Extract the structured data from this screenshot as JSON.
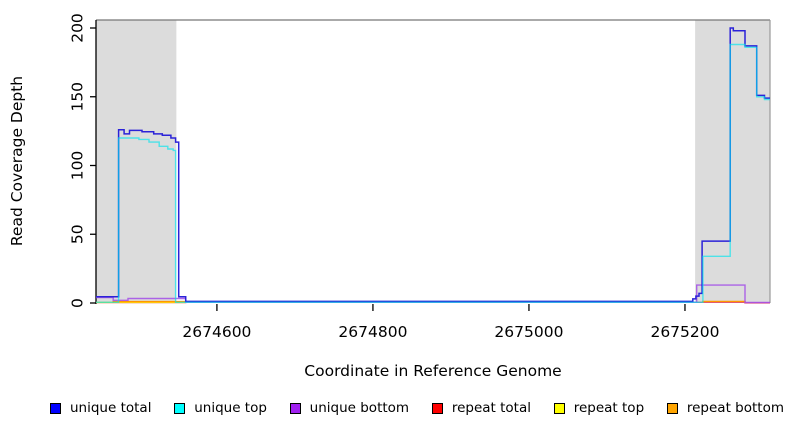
{
  "figure": {
    "xlabel": "Coordinate in Reference Genome",
    "ylabel": "Read Coverage Depth"
  },
  "legend": {
    "items": [
      {
        "label": "unique total",
        "color": "#0000FF"
      },
      {
        "label": "unique top",
        "color": "#00FFFF"
      },
      {
        "label": "unique bottom",
        "color": "#A020F0"
      },
      {
        "label": "repeat total",
        "color": "#FF0000"
      },
      {
        "label": "repeat top",
        "color": "#FFFF00"
      },
      {
        "label": "repeat bottom",
        "color": "#FFA500"
      }
    ]
  },
  "chart_data": {
    "type": "line",
    "title": "",
    "xlabel": "Coordinate in Reference Genome",
    "ylabel": "Read Coverage Depth",
    "xlim": [
      2674445,
      2675309
    ],
    "ylim": [
      0,
      206
    ],
    "xticks": [
      2674600,
      2674800,
      2675000,
      2675200
    ],
    "yticks": [
      0,
      50,
      100,
      150,
      200
    ],
    "grid": false,
    "legend_position": "bottom",
    "background_color": "#FFFFFF",
    "shaded_region_color": "#DCDCDC",
    "shaded_regions": [
      {
        "x0": 2674445,
        "x1": 2674548
      },
      {
        "x0": 2675213,
        "x1": 2675309
      }
    ],
    "series": [
      {
        "name": "repeat total",
        "color": "#DC3A6E",
        "opacity": 0.85,
        "width": 1.4,
        "segments": [
          [
            [
              2674445,
              0.3
            ],
            [
              2674560,
              0.3
            ],
            [
              2674560,
              0.5
            ],
            [
              2675277,
              0.5
            ],
            [
              2675277,
              0.1
            ],
            [
              2675309,
              0.1
            ]
          ]
        ]
      },
      {
        "name": "repeat top",
        "color": "#FFE800",
        "opacity": 0.9,
        "width": 1.4,
        "segments": [
          [
            [
              2674445,
              0.45
            ],
            [
              2674560,
              0.45
            ]
          ]
        ]
      },
      {
        "name": "repeat bottom",
        "color": "#FF9800",
        "opacity": 1,
        "width": 1.4,
        "segments": [
          [
            [
              2674467,
              0.2
            ],
            [
              2674467,
              1.0
            ],
            [
              2674559,
              1.0
            ],
            [
              2674559,
              0.2
            ]
          ],
          [
            [
              2675223,
              0.2
            ],
            [
              2675223,
              1.2
            ],
            [
              2675277,
              1.2
            ],
            [
              2675277,
              0.2
            ]
          ]
        ]
      },
      {
        "name": "unique bottom",
        "color": "#A24DE8",
        "opacity": 0.85,
        "width": 1.4,
        "segments": [
          [
            [
              2674445,
              4
            ],
            [
              2674467,
              4
            ],
            [
              2674467,
              2
            ],
            [
              2674486,
              2
            ],
            [
              2674486,
              3.3
            ],
            [
              2674560,
              3.3
            ],
            [
              2674560,
              0.5
            ],
            [
              2675215,
              0.5
            ],
            [
              2675215,
              13
            ],
            [
              2675277,
              13
            ],
            [
              2675277,
              0.4
            ],
            [
              2675309,
              0.4
            ]
          ]
        ]
      },
      {
        "name": "unique total",
        "color": "#2B22D8",
        "opacity": 1,
        "width": 1.5,
        "segments": [
          [
            [
              2674445,
              4.5
            ],
            [
              2674474,
              4.5
            ],
            [
              2674474,
              126
            ],
            [
              2674481,
              126
            ],
            [
              2674481,
              123
            ],
            [
              2674488,
              123
            ],
            [
              2674488,
              125.5
            ],
            [
              2674504,
              125.5
            ],
            [
              2674504,
              124.5
            ],
            [
              2674519,
              124.5
            ],
            [
              2674519,
              123
            ],
            [
              2674530,
              123
            ],
            [
              2674530,
              122
            ],
            [
              2674541,
              122
            ],
            [
              2674541,
              120
            ],
            [
              2674547,
              120
            ],
            [
              2674547,
              117
            ],
            [
              2674551,
              117
            ],
            [
              2674551,
              4.5
            ],
            [
              2674560,
              4.5
            ],
            [
              2674560,
              1.2
            ],
            [
              2675210,
              1.2
            ],
            [
              2675210,
              3
            ],
            [
              2675214,
              3
            ],
            [
              2675214,
              5
            ],
            [
              2675218,
              5
            ],
            [
              2675218,
              7
            ],
            [
              2675222,
              7
            ],
            [
              2675222,
              45
            ],
            [
              2675258,
              45
            ],
            [
              2675258,
              200
            ],
            [
              2675262,
              200
            ],
            [
              2675262,
              198
            ],
            [
              2675277,
              198
            ],
            [
              2675277,
              187
            ],
            [
              2675292,
              187
            ],
            [
              2675292,
              151
            ],
            [
              2675302,
              151
            ],
            [
              2675302,
              149
            ],
            [
              2675309,
              149
            ]
          ]
        ]
      },
      {
        "name": "unique top",
        "color": "#00E5EE",
        "opacity": 0.65,
        "width": 1.4,
        "segments": [
          [
            [
              2674445,
              0.5
            ],
            [
              2674474,
              0.5
            ],
            [
              2674474,
              120
            ],
            [
              2674500,
              120
            ],
            [
              2674500,
              119
            ],
            [
              2674513,
              119
            ],
            [
              2674513,
              117
            ],
            [
              2674526,
              117
            ],
            [
              2674526,
              114
            ],
            [
              2674537,
              114
            ],
            [
              2674537,
              112
            ],
            [
              2674544,
              112
            ],
            [
              2674544,
              111
            ],
            [
              2674547,
              111
            ],
            [
              2674547,
              0.5
            ],
            [
              2675223,
              0.5
            ],
            [
              2675223,
              34
            ],
            [
              2675258,
              34
            ],
            [
              2675258,
              188
            ],
            [
              2675277,
              188
            ],
            [
              2675277,
              186
            ],
            [
              2675292,
              186
            ],
            [
              2675292,
              150
            ],
            [
              2675302,
              150
            ],
            [
              2675302,
              148
            ],
            [
              2675309,
              148
            ]
          ]
        ]
      }
    ]
  }
}
